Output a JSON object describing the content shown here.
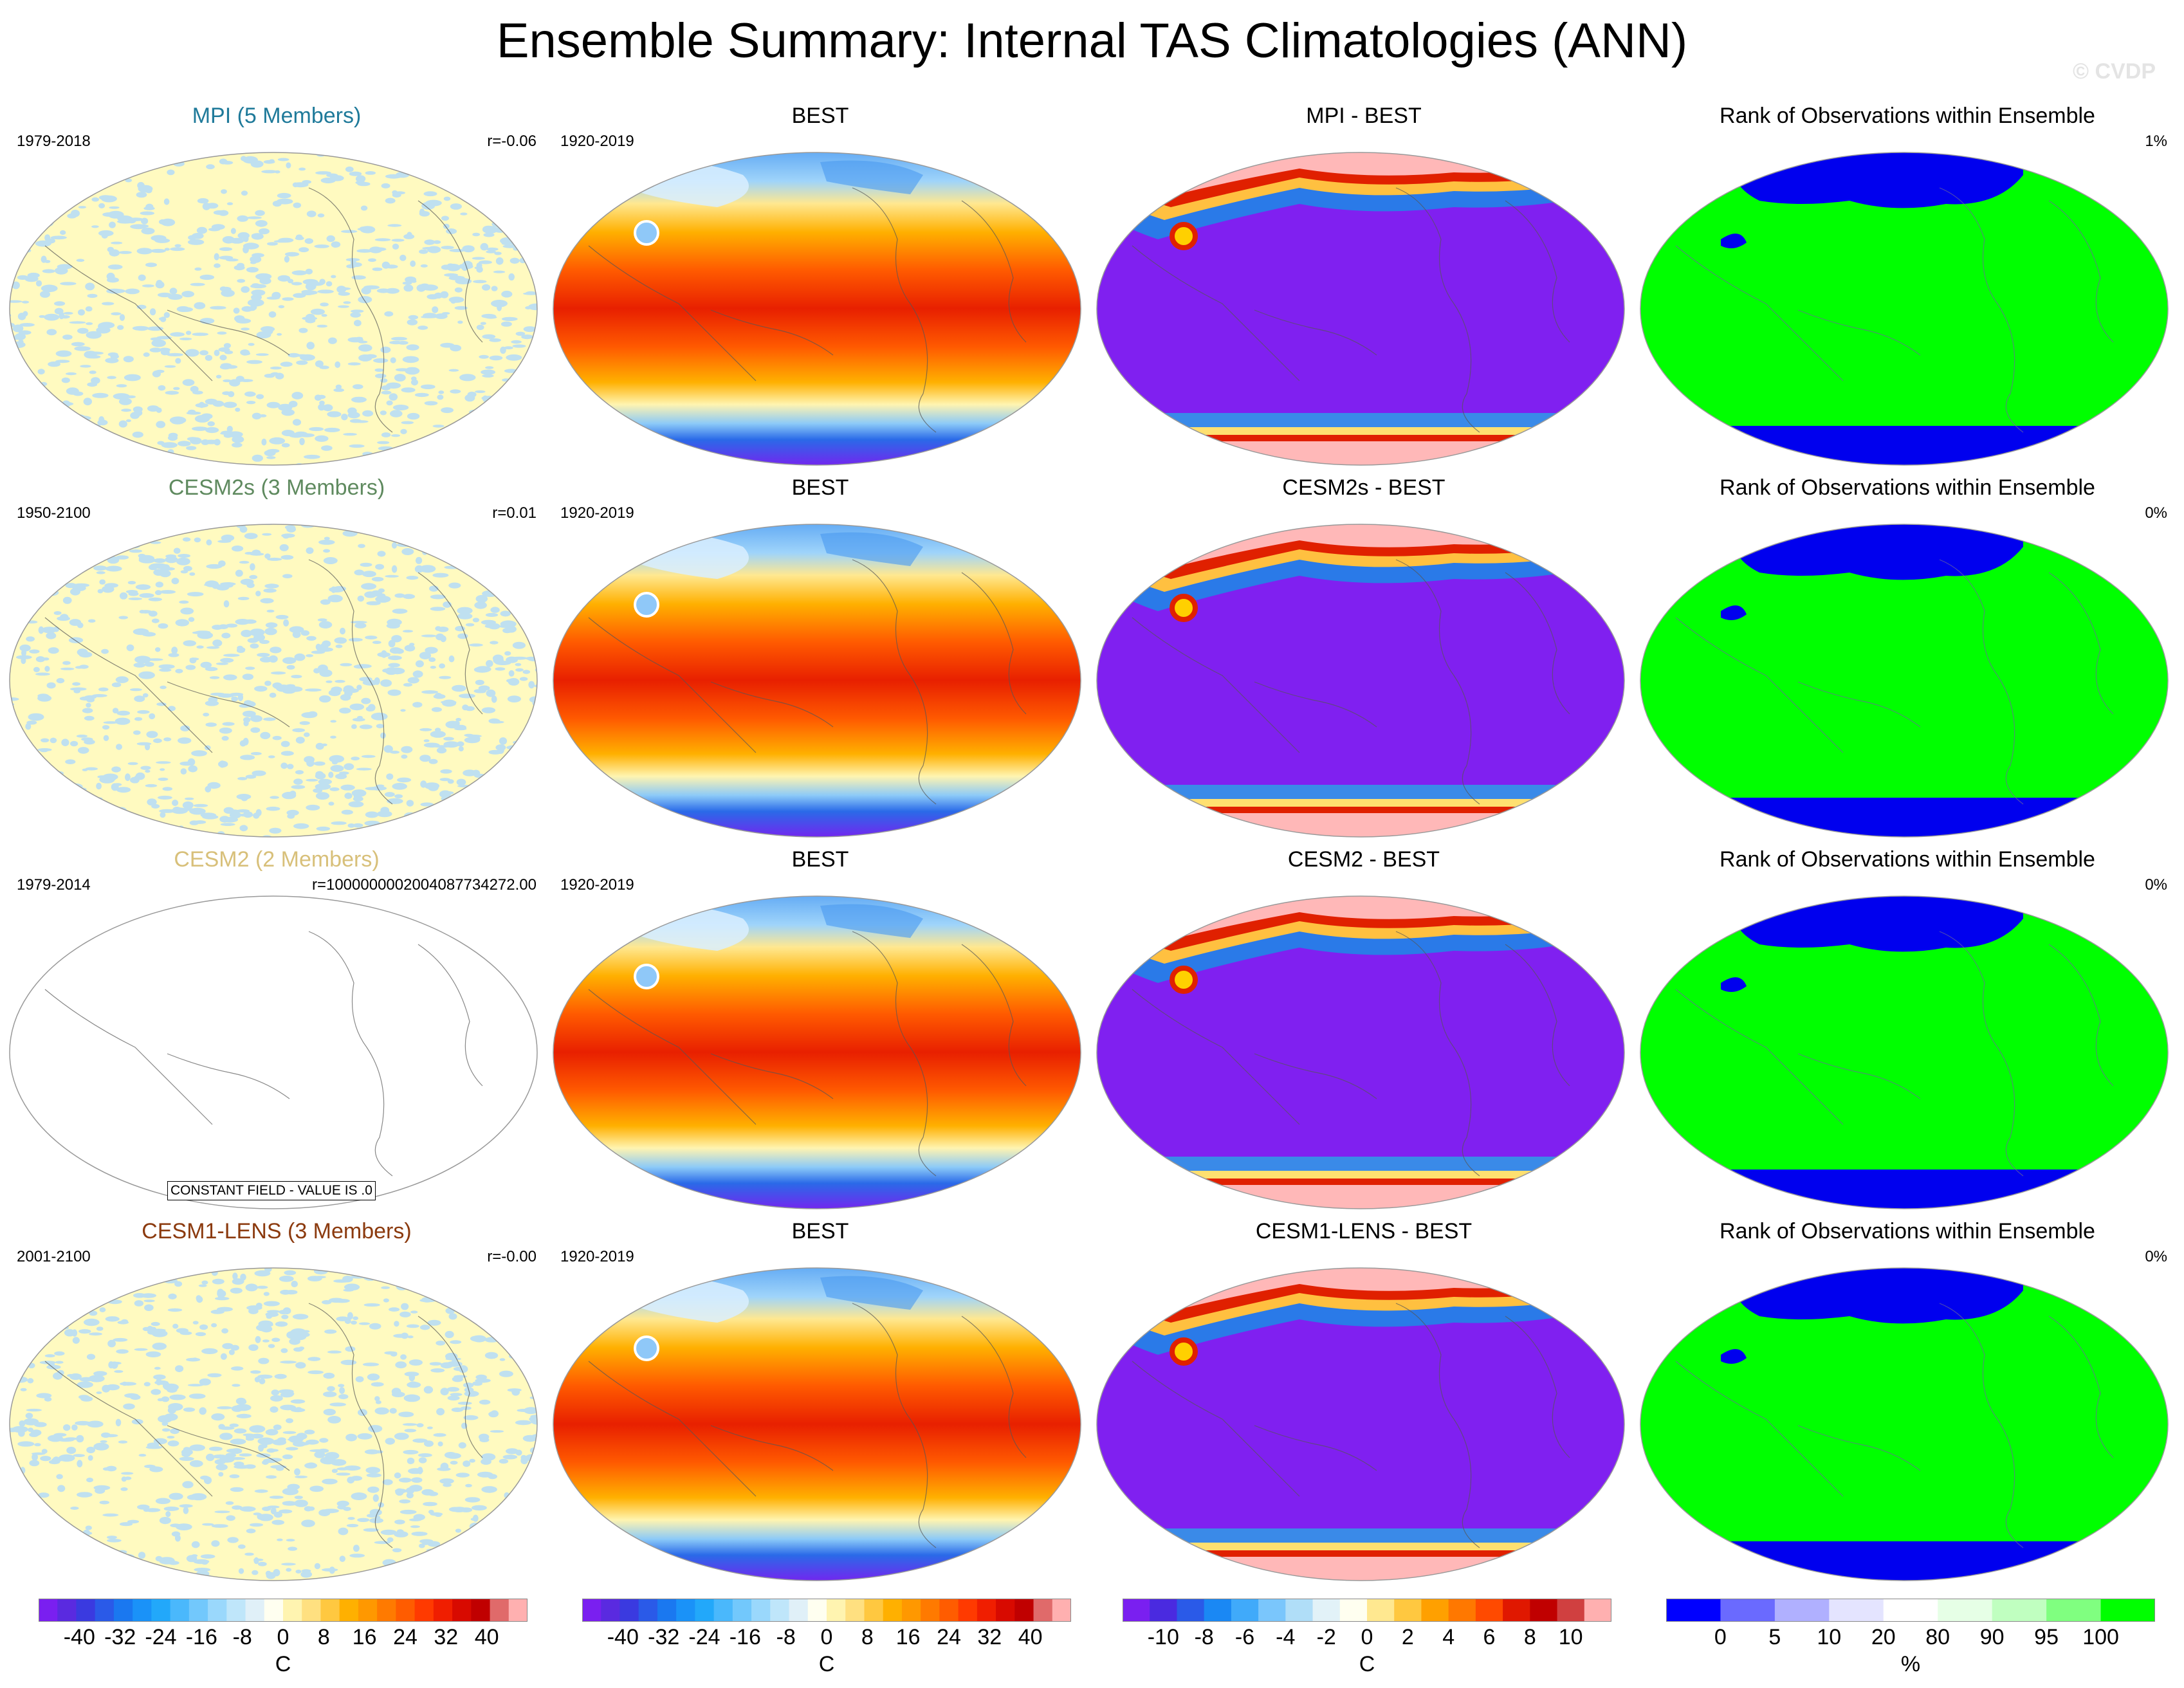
{
  "title": "Ensemble Summary: Internal TAS Climatologies (ANN)",
  "watermark": "© CVDP",
  "rows": [
    {
      "model": {
        "title": "MPI (5 Members)",
        "title_color": "#1f7a9a",
        "years": "1979-2018",
        "stat": "r=-0.06",
        "field": "noise"
      },
      "obs": {
        "title": "BEST",
        "years": "1920-2019"
      },
      "diff": {
        "title": "MPI - BEST"
      },
      "rank": {
        "title": "Rank of Observations within Ensemble",
        "stat": "1%"
      }
    },
    {
      "model": {
        "title": "CESM2s (3 Members)",
        "title_color": "#5f8a5f",
        "years": "1950-2100",
        "stat": "r=0.01",
        "field": "noise"
      },
      "obs": {
        "title": "BEST",
        "years": "1920-2019"
      },
      "diff": {
        "title": "CESM2s - BEST"
      },
      "rank": {
        "title": "Rank of Observations within Ensemble",
        "stat": "0%"
      }
    },
    {
      "model": {
        "title": "CESM2 (2 Members)",
        "title_color": "#d8c07a",
        "years": "1979-2014",
        "stat": "r=1000000002004087734272.00",
        "field": "constant",
        "note": "CONSTANT FIELD - VALUE IS .0"
      },
      "obs": {
        "title": "BEST",
        "years": "1920-2019"
      },
      "diff": {
        "title": "CESM2 - BEST"
      },
      "rank": {
        "title": "Rank of Observations within Ensemble",
        "stat": "0%"
      }
    },
    {
      "model": {
        "title": "CESM1-LENS (3 Members)",
        "title_color": "#8b3a0e",
        "years": "2001-2100",
        "stat": "r=-0.00",
        "field": "noise"
      },
      "obs": {
        "title": "BEST",
        "years": "1920-2019"
      },
      "diff": {
        "title": "CESM1-LENS - BEST"
      },
      "rank": {
        "title": "Rank of Observations within Ensemble",
        "stat": "0%"
      }
    }
  ],
  "colorbars": [
    {
      "name": "model-colorbar",
      "labels": [
        "-40",
        "-32",
        "-24",
        "-16",
        "-8",
        "0",
        "8",
        "16",
        "24",
        "32",
        "40"
      ],
      "unit": "C",
      "colors": [
        "#7a1ff0",
        "#5a2ae0",
        "#3a3ae0",
        "#2a5ae8",
        "#1a78f0",
        "#1a92f8",
        "#22a8fa",
        "#4ab8fc",
        "#72c8fc",
        "#9ad8fc",
        "#bfe6fa",
        "#e0f0f8",
        "#fffff0",
        "#fff4b0",
        "#ffe080",
        "#ffc840",
        "#ffb000",
        "#ff9800",
        "#ff7a00",
        "#ff5c00",
        "#ff3a00",
        "#f01e00",
        "#d80a00",
        "#c00000",
        "#e06a6a",
        "#ffb0b0"
      ]
    },
    {
      "name": "obs-colorbar",
      "labels": [
        "-40",
        "-32",
        "-24",
        "-16",
        "-8",
        "0",
        "8",
        "16",
        "24",
        "32",
        "40"
      ],
      "unit": "C",
      "colors": [
        "#7a1ff0",
        "#5a2ae0",
        "#3a3ae0",
        "#2a5ae8",
        "#1a78f0",
        "#1a92f8",
        "#22a8fa",
        "#4ab8fc",
        "#72c8fc",
        "#9ad8fc",
        "#bfe6fa",
        "#e0f0f8",
        "#fffff0",
        "#fff4b0",
        "#ffe080",
        "#ffc840",
        "#ffb000",
        "#ff9800",
        "#ff7a00",
        "#ff5c00",
        "#ff3a00",
        "#f01e00",
        "#d80a00",
        "#c00000",
        "#e06a6a",
        "#ffb0b0"
      ]
    },
    {
      "name": "diff-colorbar",
      "labels": [
        "-10",
        "-8",
        "-6",
        "-4",
        "-2",
        "0",
        "2",
        "4",
        "6",
        "8",
        "10"
      ],
      "unit": "C",
      "colors": [
        "#7a1ff0",
        "#4a2ae0",
        "#2a5ae8",
        "#1a88f4",
        "#40aafa",
        "#7ac6fc",
        "#b0def8",
        "#e2f2f8",
        "#fffff0",
        "#ffe890",
        "#ffc840",
        "#ffa000",
        "#ff7800",
        "#ff4a00",
        "#e01800",
        "#c00000",
        "#d04040",
        "#ffb0b0"
      ]
    },
    {
      "name": "rank-colorbar",
      "labels": [
        "0",
        "5",
        "10",
        "20",
        "80",
        "90",
        "95",
        "100"
      ],
      "unit": "%",
      "colors": [
        "#0000ff",
        "#6a6aff",
        "#b0b0ff",
        "#e4e4ff",
        "#ffffff",
        "#e6ffe6",
        "#c0ffc0",
        "#80ff80",
        "#00ff00"
      ]
    }
  ]
}
